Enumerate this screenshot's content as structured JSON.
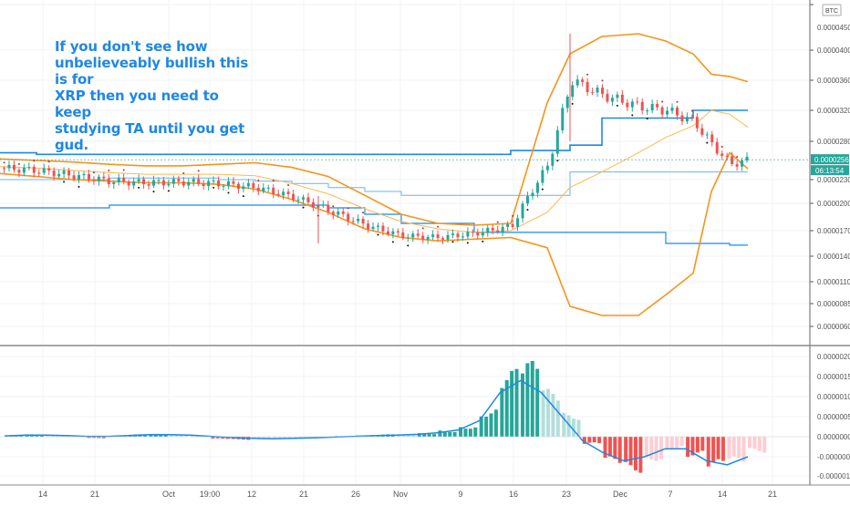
{
  "annotation": "If you don't see how\nunbelieveably bullish this is for\nXRP then you need to keep\nstudying TA until you get gud.",
  "currency_label": "BTC",
  "price_tag": "0.0000256",
  "countdown_tag": "06:13:54",
  "colors": {
    "up": "#26a69a",
    "down": "#ef5350",
    "up_light": "#b2dfdb",
    "down_light": "#ffcdd2",
    "band_outer": "#f7931a",
    "band_inner": "#ffb74d",
    "blue": "#1e88e5",
    "dots": "#c62828",
    "markers": "#111111"
  },
  "chart_data": [
    {
      "type": "line",
      "name": "price-pane",
      "y_ticks": [
        "0.0000450",
        "0.0000400",
        "0.0000360",
        "0.0000320",
        "0.0000280",
        "0.0000230",
        "0.0000200",
        "0.0000170",
        "0.0000140",
        "0.0000110",
        "0.0000085",
        "0.0000060"
      ],
      "x_ticks": [
        "14",
        "21",
        "Oct",
        "19:00",
        "12",
        "21",
        "26",
        "Nov",
        "9",
        "16",
        "23",
        "Dec",
        "7",
        "14",
        "21"
      ],
      "last_price": 2.56e-05,
      "candles_close": [
        2.45e-05,
        2.42e-05,
        2.35e-05,
        2.28e-05,
        2.26e-05,
        2.27e-05,
        2.25e-05,
        2.2e-05,
        2.08e-05,
        1.92e-05,
        1.76e-05,
        1.64e-05,
        1.62e-05,
        1.67e-05,
        1.75e-05,
        2.5e-05,
        3.6e-05,
        3.4e-05,
        3.25e-05,
        3.2e-05,
        3.05e-05,
        2.75e-05,
        2.5e-05,
        2.56e-05
      ],
      "upper_band": [
        2.57e-05,
        2.55e-05,
        2.53e-05,
        2.5e-05,
        2.48e-05,
        2.48e-05,
        2.5e-05,
        2.52e-05,
        2.46e-05,
        2.34e-05,
        2.1e-05,
        1.88e-05,
        1.78e-05,
        1.76e-05,
        1.78e-05,
        3.3e-05,
        3.95e-05,
        4.15e-05,
        4.18e-05,
        4.1e-05,
        3.95e-05,
        3.68e-05,
        3.65e-05,
        3.58e-05
      ],
      "lower_band": [
        2.38e-05,
        2.34e-05,
        2.3e-05,
        2.28e-05,
        2.26e-05,
        2.26e-05,
        2.24e-05,
        2.18e-05,
        2.05e-05,
        1.9e-05,
        1.72e-05,
        1.62e-05,
        1.58e-05,
        1.6e-05,
        1.62e-05,
        1.5e-05,
        8.2e-06,
        7.2e-06,
        7.2e-06,
        9.5e-06,
        1.2e-05,
        2.15e-05,
        2.65e-05,
        2.44e-05
      ],
      "mid_band": [
        2.47e-05,
        2.45e-05,
        2.42e-05,
        2.39e-05,
        2.37e-05,
        2.37e-05,
        2.37e-05,
        2.35e-05,
        2.25e-05,
        2.12e-05,
        1.94e-05,
        1.8e-05,
        1.72e-05,
        1.68e-05,
        1.7e-05,
        1.9e-05,
        2.2e-05,
        2.4e-05,
        2.65e-05,
        2.85e-05,
        3e-05,
        3.2e-05,
        3.15e-05,
        2.98e-05
      ],
      "blue_upper": [
        2.65e-05,
        2.63e-05,
        2.63e-05,
        2.63e-05,
        2.63e-05,
        2.63e-05,
        2.63e-05,
        2.63e-05,
        2.63e-05,
        2.63e-05,
        2.63e-05,
        2.63e-05,
        2.63e-05,
        2.63e-05,
        2.68e-05,
        2.68e-05,
        2.75e-05,
        3.1e-05,
        3.1e-05,
        3.1e-05,
        3.2e-05,
        3.2e-05,
        3.2e-05,
        3.2e-05
      ],
      "blue_lower": [
        1.95e-05,
        1.95e-05,
        1.95e-05,
        1.98e-05,
        1.98e-05,
        1.98e-05,
        1.98e-05,
        1.98e-05,
        1.98e-05,
        1.95e-05,
        1.88e-05,
        1.78e-05,
        1.78e-05,
        1.68e-05,
        1.68e-05,
        1.68e-05,
        1.68e-05,
        1.68e-05,
        1.68e-05,
        1.55e-05,
        1.55e-05,
        1.55e-05,
        1.53e-05,
        1.53e-05
      ],
      "blue_mid": [
        2.3e-05,
        2.3e-05,
        2.3e-05,
        2.32e-05,
        2.32e-05,
        2.32e-05,
        2.3e-05,
        2.28e-05,
        2.25e-05,
        2.2e-05,
        2.15e-05,
        2.1e-05,
        2.1e-05,
        2.1e-05,
        2.1e-05,
        2.1e-05,
        2.4e-05,
        2.4e-05,
        2.4e-05,
        2.4e-05,
        2.4e-05,
        2.4e-05,
        2.4e-05,
        2.4e-05
      ]
    },
    {
      "type": "bar",
      "name": "oscillator-pane",
      "y_ticks": [
        "0.0000020",
        "0.0000015",
        "0.0000010",
        "0.0000005",
        "0.0000000",
        "-0.0000005",
        "-0.0000010"
      ],
      "histogram": [
        4e-08,
        6e-08,
        5e-08,
        2e-08,
        -4e-08,
        3e-08,
        6e-08,
        7e-08,
        5e-08,
        3e-08,
        -6e-08,
        -8e-08,
        -7e-08,
        -6e-08,
        -4e-08,
        -3e-08,
        2e-08,
        4e-08,
        6e-08,
        5e-08,
        9e-08,
        1.6e-07,
        2.8e-07,
        7e-07,
        1.7e-06,
        1.9e-06,
        1.2e-06,
        6e-07,
        -2e-07,
        -7e-07,
        -9e-07,
        -6e-07,
        -3e-07,
        -5e-07,
        -8e-07,
        -7e-07,
        -4e-07
      ],
      "signal": [
        2e-08,
        4e-08,
        4e-08,
        3e-08,
        1e-08,
        1e-08,
        3e-08,
        5e-08,
        5e-08,
        4e-08,
        1e-08,
        -2e-08,
        -4e-08,
        -5e-08,
        -4e-08,
        -3e-08,
        -1e-08,
        1e-08,
        3e-08,
        4e-08,
        6e-08,
        1e-07,
        1.7e-07,
        4e-07,
        1.1e-06,
        1.4e-06,
        1.1e-06,
        5e-07,
        -1e-07,
        -4e-07,
        -6e-07,
        -5e-07,
        -3e-07,
        -3e-07,
        -6e-07,
        -7e-07,
        -5e-07
      ]
    }
  ]
}
